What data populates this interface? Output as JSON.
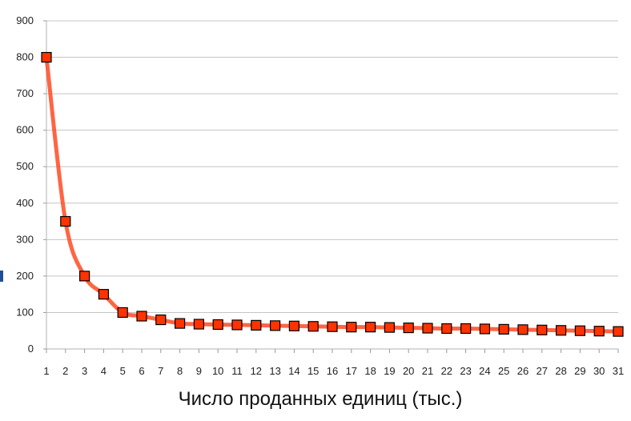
{
  "chart_data": {
    "type": "line",
    "title": "",
    "xlabel": "Число проданных единиц (тыс.)",
    "ylabel": "",
    "x": [
      1,
      2,
      3,
      4,
      5,
      6,
      7,
      8,
      9,
      10,
      11,
      12,
      13,
      14,
      15,
      16,
      17,
      18,
      19,
      20,
      21,
      22,
      23,
      24,
      25,
      26,
      27,
      28,
      29,
      30,
      31
    ],
    "series": [
      {
        "values": [
          800,
          350,
          200,
          150,
          100,
          90,
          80,
          70,
          68,
          67,
          66,
          65,
          64,
          63,
          62,
          61,
          60,
          60,
          59,
          58,
          57,
          56,
          56,
          55,
          54,
          53,
          52,
          51,
          50,
          49,
          48
        ],
        "line_color": "#ff4a22",
        "marker": "square",
        "marker_fill": "#ff3300",
        "marker_edge": "#000000",
        "smooth": true
      }
    ],
    "ylim": [
      0,
      900
    ],
    "yticks": [
      0,
      100,
      200,
      300,
      400,
      500,
      600,
      700,
      800,
      900
    ],
    "grid": "horizontal",
    "legend": "none"
  }
}
